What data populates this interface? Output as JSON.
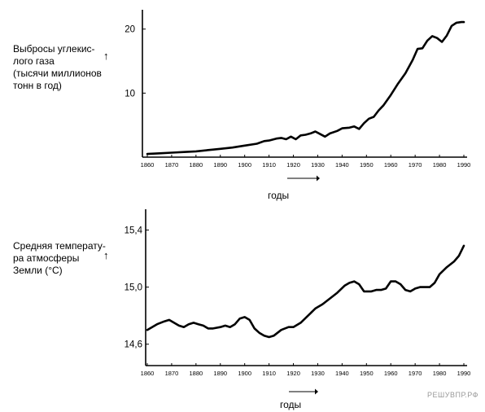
{
  "chart_data": [
    {
      "type": "line",
      "title": "",
      "ylabel": "Выбросы углекис-\nлого газа\n(тысячи миллионов\nтонн в год)",
      "xlabel": "годы",
      "xlim": [
        1860,
        1990
      ],
      "ylim": [
        0,
        22
      ],
      "xticks": [
        "1860",
        "1870",
        "1880",
        "1890",
        "1900",
        "1910",
        "1920",
        "1930",
        "1940",
        "1950",
        "1960",
        "1970",
        "1980",
        "1990"
      ],
      "yticks": [
        "10",
        "20"
      ],
      "ytick_values": [
        10,
        20
      ],
      "grid": false,
      "x": [
        1860,
        1865,
        1870,
        1875,
        1880,
        1885,
        1890,
        1895,
        1900,
        1905,
        1908,
        1910,
        1913,
        1915,
        1917,
        1919,
        1921,
        1923,
        1925,
        1927,
        1929,
        1931,
        1933,
        1935,
        1938,
        1940,
        1943,
        1945,
        1947,
        1949,
        1951,
        1953,
        1955,
        1957,
        1960,
        1963,
        1966,
        1969,
        1971,
        1973,
        1975,
        1977,
        1979,
        1981,
        1983,
        1985,
        1987,
        1989,
        1990
      ],
      "y": [
        0.5,
        0.6,
        0.7,
        0.8,
        0.9,
        1.1,
        1.3,
        1.5,
        1.8,
        2.1,
        2.5,
        2.6,
        2.9,
        3.0,
        2.8,
        3.2,
        2.8,
        3.4,
        3.5,
        3.7,
        4.0,
        3.6,
        3.2,
        3.7,
        4.1,
        4.5,
        4.6,
        4.8,
        4.4,
        5.3,
        6.0,
        6.3,
        7.3,
        8.1,
        9.7,
        11.5,
        13.1,
        15.2,
        16.9,
        17.0,
        18.2,
        18.9,
        18.6,
        18.0,
        19.0,
        20.5,
        21.0,
        21.1,
        21.1
      ]
    },
    {
      "type": "line",
      "title": "",
      "ylabel": "Средняя температу-\nра атмосферы\nЗемли (°С)",
      "xlabel": "годы",
      "xlim": [
        1860,
        1990
      ],
      "ylim": [
        14.45,
        15.5
      ],
      "xticks": [
        "1860",
        "1870",
        "1880",
        "1890",
        "1900",
        "1910",
        "1920",
        "1930",
        "1940",
        "1950",
        "1960",
        "1970",
        "1980",
        "1990"
      ],
      "yticks": [
        "14,6",
        "15,0",
        "15,4"
      ],
      "ytick_values": [
        14.6,
        15.0,
        15.4
      ],
      "grid": false,
      "x": [
        1860,
        1862,
        1864,
        1867,
        1869,
        1871,
        1873,
        1875,
        1877,
        1879,
        1881,
        1883,
        1885,
        1887,
        1890,
        1892,
        1894,
        1896,
        1898,
        1900,
        1902,
        1904,
        1906,
        1908,
        1910,
        1912,
        1915,
        1918,
        1920,
        1923,
        1926,
        1929,
        1932,
        1935,
        1938,
        1941,
        1943,
        1945,
        1947,
        1949,
        1952,
        1954,
        1956,
        1958,
        1960,
        1962,
        1964,
        1966,
        1968,
        1970,
        1972,
        1974,
        1976,
        1978,
        1980,
        1983,
        1986,
        1988,
        1990
      ],
      "y": [
        14.7,
        14.72,
        14.74,
        14.76,
        14.77,
        14.75,
        14.73,
        14.72,
        14.74,
        14.75,
        14.74,
        14.73,
        14.71,
        14.71,
        14.72,
        14.73,
        14.72,
        14.74,
        14.78,
        14.79,
        14.77,
        14.71,
        14.68,
        14.66,
        14.65,
        14.66,
        14.7,
        14.72,
        14.72,
        14.75,
        14.8,
        14.85,
        14.88,
        14.92,
        14.96,
        15.01,
        15.03,
        15.04,
        15.02,
        14.97,
        14.97,
        14.98,
        14.98,
        14.99,
        15.04,
        15.04,
        15.02,
        14.98,
        14.97,
        14.99,
        15.0,
        15.0,
        15.0,
        15.03,
        15.09,
        15.14,
        15.18,
        15.22,
        15.29
      ]
    }
  ],
  "labels": {
    "up_arrow": "↑",
    "watermark": "РЕШУВПР.РФ"
  }
}
